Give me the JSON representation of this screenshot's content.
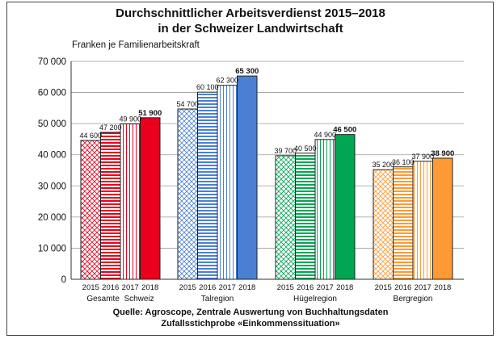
{
  "title_line1": "Durchschnittlicher Arbeitsverdienst 2015–2018",
  "title_line2": "in der Schweizer Landwirtschaft",
  "source_line1": "Quelle: Agroscope, Zentrale Auswertung von Buchhaltungsdaten",
  "source_line2": "Zufallsstichprobe «Einkommenssituation»",
  "chart_data": {
    "type": "bar",
    "ylabel": "Franken je Familienarbeitskraft",
    "ylim": [
      0,
      70000
    ],
    "yticks": [
      0,
      10000,
      20000,
      30000,
      40000,
      50000,
      60000,
      70000
    ],
    "ytick_labels": [
      "0",
      "10 000",
      "20 000",
      "30 000",
      "40 000",
      "50 000",
      "60 000",
      "70 000"
    ],
    "grid": true,
    "years": [
      "2015",
      "2016",
      "2017",
      "2018"
    ],
    "groups": [
      {
        "name": "Gesamte  Schweiz",
        "color": "#e8001c",
        "values": [
          44600,
          47200,
          49900,
          51900
        ],
        "labels": [
          "44 600",
          "47 200",
          "49 900",
          "51 900"
        ]
      },
      {
        "name": "Talregion",
        "color": "#4a7fd4",
        "values": [
          54700,
          60100,
          62300,
          65300
        ],
        "labels": [
          "54 700",
          "60 100",
          "62 300",
          "65 300"
        ]
      },
      {
        "name": "Hügelregion",
        "color": "#00a651",
        "values": [
          39700,
          40500,
          44900,
          46500
        ],
        "labels": [
          "39 700",
          "40 500",
          "44 900",
          "46 500"
        ]
      },
      {
        "name": "Bergregion",
        "color": "#ff9933",
        "values": [
          35200,
          36100,
          37900,
          38900
        ],
        "labels": [
          "35 200",
          "36 100",
          "37 900",
          "38 900"
        ]
      }
    ]
  }
}
